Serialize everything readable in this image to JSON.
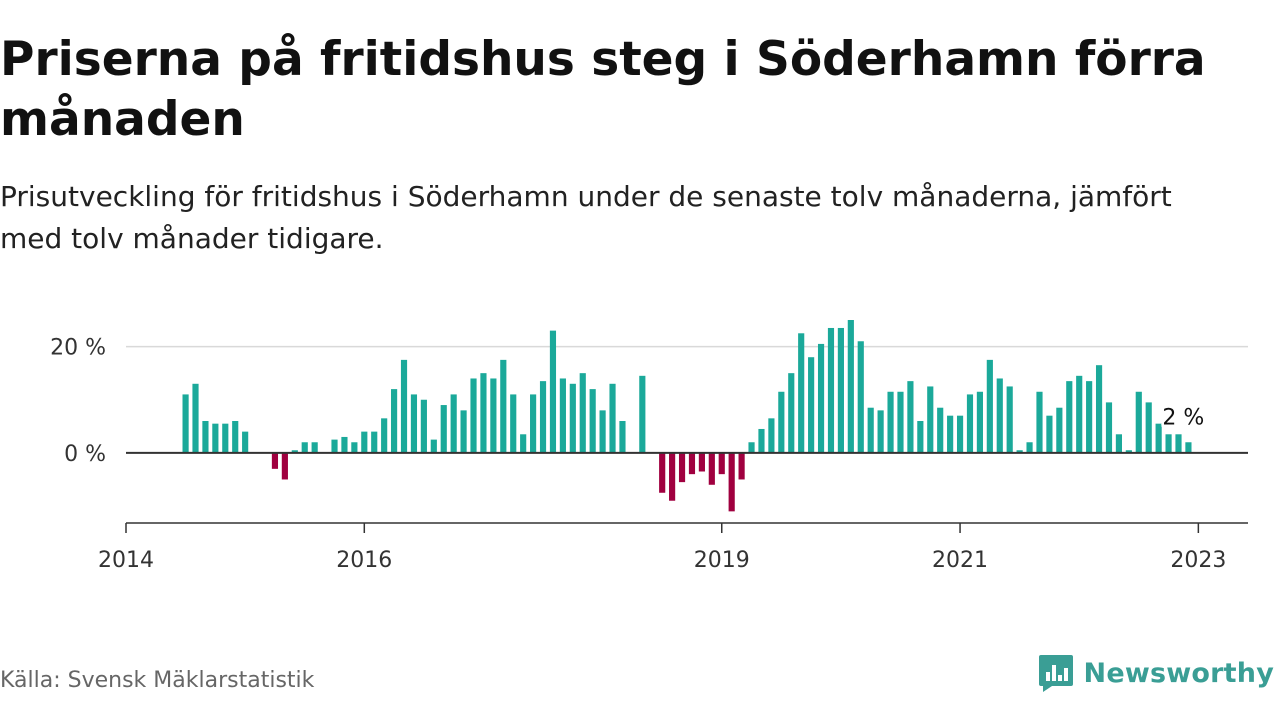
{
  "header": {
    "title": "Priserna på fritidshus steg i Söderhamn förra månaden",
    "subtitle": "Prisutveckling för fritidshus i Söderhamn under de senaste tolv månaderna, jämfört med tolv månader tidigare."
  },
  "footer": {
    "source": "Källa: Svensk Mäklarstatistik",
    "brand": "Newsworthy"
  },
  "colors": {
    "positive": "#1ba99a",
    "negative": "#a0003f",
    "brand": "#3a9e95"
  },
  "chart_data": {
    "type": "bar",
    "title": "Priserna på fritidshus steg i Söderhamn förra månaden",
    "subtitle": "Prisutveckling för fritidshus i Söderhamn under de senaste tolv månaderna, jämfört med tolv månader tidigare.",
    "x_unit": "year-month",
    "xlim": [
      "2014-01",
      "2023-06"
    ],
    "ylim": [
      -13,
      25
    ],
    "y_ticks": [
      0,
      20
    ],
    "y_tick_labels": [
      "0 %",
      "20 %"
    ],
    "x_ticks": [
      "2014-01",
      "2016-01",
      "2019-01",
      "2021-01",
      "2023-01"
    ],
    "x_tick_labels": [
      "2014",
      "2016",
      "2019",
      "2021",
      "2023"
    ],
    "grid": true,
    "annotation": {
      "label": "2 %",
      "x": "2022-12",
      "value": 2
    },
    "x": [
      "2014-07",
      "2014-08",
      "2014-09",
      "2014-10",
      "2014-11",
      "2014-12",
      "2015-01",
      "2015-02",
      "2015-03",
      "2015-04",
      "2015-05",
      "2015-06",
      "2015-07",
      "2015-08",
      "2015-09",
      "2015-10",
      "2015-11",
      "2015-12",
      "2016-01",
      "2016-02",
      "2016-03",
      "2016-04",
      "2016-05",
      "2016-06",
      "2016-07",
      "2016-08",
      "2016-09",
      "2016-10",
      "2016-11",
      "2016-12",
      "2017-01",
      "2017-02",
      "2017-03",
      "2017-04",
      "2017-05",
      "2017-06",
      "2017-07",
      "2017-08",
      "2017-09",
      "2017-10",
      "2017-11",
      "2017-12",
      "2018-01",
      "2018-02",
      "2018-03",
      "2018-04",
      "2018-05",
      "2018-06",
      "2018-07",
      "2018-08",
      "2018-09",
      "2018-10",
      "2018-11",
      "2018-12",
      "2019-01",
      "2019-02",
      "2019-03",
      "2019-04",
      "2019-05",
      "2019-06",
      "2019-07",
      "2019-08",
      "2019-09",
      "2019-10",
      "2019-11",
      "2019-12",
      "2020-01",
      "2020-02",
      "2020-03",
      "2020-04",
      "2020-05",
      "2020-06",
      "2020-07",
      "2020-08",
      "2020-09",
      "2020-10",
      "2020-11",
      "2020-12",
      "2021-01",
      "2021-02",
      "2021-03",
      "2021-04",
      "2021-05",
      "2021-06",
      "2021-07",
      "2021-08",
      "2021-09",
      "2021-10",
      "2021-11",
      "2021-12",
      "2022-01",
      "2022-02",
      "2022-03",
      "2022-04",
      "2022-05",
      "2022-06",
      "2022-07",
      "2022-08",
      "2022-09",
      "2022-10",
      "2022-11",
      "2022-12"
    ],
    "values": [
      11,
      13,
      6,
      5.5,
      5.5,
      6,
      4,
      null,
      null,
      -3,
      -5,
      0.5,
      2,
      2,
      null,
      2.5,
      3,
      2,
      4,
      4,
      6.5,
      12,
      17.5,
      11,
      10,
      2.5,
      9,
      11,
      8,
      14,
      15,
      14,
      17.5,
      11,
      3.5,
      11,
      13.5,
      23,
      14,
      13,
      15,
      12,
      8,
      13,
      6,
      null,
      14.5,
      null,
      -7.5,
      -9,
      -5.5,
      -4,
      -3.5,
      -6,
      -4,
      -11,
      -5,
      2,
      4.5,
      6.5,
      11.5,
      15,
      22.5,
      18,
      20.5,
      23.5,
      23.5,
      25,
      21,
      8.5,
      8,
      11.5,
      11.5,
      13.5,
      6,
      12.5,
      8.5,
      7,
      7,
      11,
      11.5,
      17.5,
      14,
      12.5,
      0.5,
      2,
      11.5,
      7,
      8.5,
      13.5,
      14.5,
      13.5,
      16.5,
      9.5,
      3.5,
      0.5,
      11.5,
      9.5,
      5.5,
      3.5,
      3.5,
      2
    ]
  }
}
